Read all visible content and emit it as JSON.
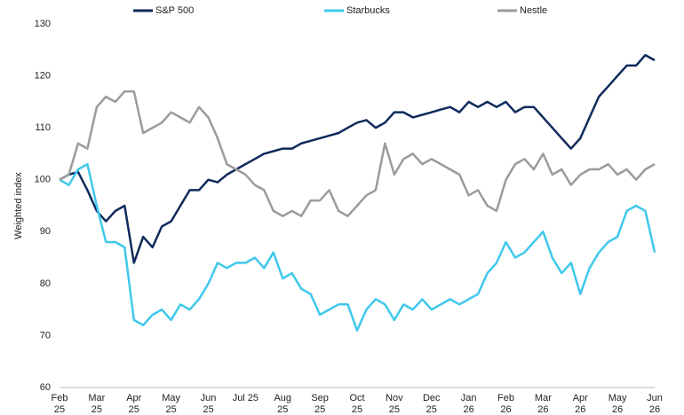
{
  "chart_data": {
    "type": "line",
    "y_label": "Weighted index",
    "categories": [
      "Feb 25",
      null,
      null,
      null,
      "Mar 25",
      null,
      null,
      null,
      "Apr 25",
      null,
      null,
      null,
      "May 25",
      null,
      null,
      null,
      "Jun 25",
      null,
      null,
      null,
      "Jul 25",
      null,
      null,
      null,
      "Aug 25",
      null,
      null,
      null,
      "Sep 25",
      null,
      null,
      null,
      "Oct 25",
      null,
      null,
      null,
      "Nov 25",
      null,
      null,
      null,
      "Dec 25",
      null,
      null,
      null,
      "Jan 26",
      null,
      null,
      null,
      "Feb 26",
      null,
      null,
      null,
      "Mar 26",
      null,
      null,
      null,
      "Apr 26",
      null,
      null,
      null,
      "May 26",
      null,
      null,
      null,
      "Jun 26"
    ],
    "series": [
      {
        "name": "S&P 500",
        "color": "#0f2a5c",
        "values": [
          100,
          101,
          101.5,
          98,
          94,
          92,
          94,
          95,
          84,
          89,
          87,
          91,
          92,
          95,
          98,
          98,
          100,
          99.5,
          101,
          102,
          103,
          104,
          105,
          105.5,
          106,
          106,
          107,
          107.5,
          108,
          108.5,
          109,
          110,
          111,
          111.5,
          110,
          111,
          113,
          113,
          112,
          112.5,
          113,
          113.5,
          114,
          113,
          115,
          114,
          115,
          114,
          115,
          113,
          114,
          114,
          112,
          110,
          108,
          106,
          108,
          112,
          116,
          118,
          120,
          122,
          122,
          124,
          123
        ]
      },
      {
        "name": "Starbucks",
        "color": "#3fc8ec",
        "values": [
          100,
          99,
          102,
          103,
          95,
          88,
          88,
          87,
          73,
          72,
          74,
          75,
          73,
          76,
          75,
          77,
          80,
          84,
          83,
          84,
          84,
          85,
          83,
          86,
          81,
          82,
          79,
          78,
          74,
          75,
          76,
          76,
          71,
          75,
          77,
          76,
          73,
          76,
          75,
          77,
          75,
          76,
          77,
          76,
          77,
          78,
          82,
          84,
          88,
          85,
          86,
          88,
          90,
          85,
          82,
          84,
          78,
          83,
          86,
          88,
          89,
          94,
          95,
          94,
          86
        ]
      },
      {
        "name": "Nestle",
        "color": "#9b9b9b",
        "values": [
          100,
          101,
          107,
          106,
          114,
          116,
          115,
          117,
          117,
          109,
          110,
          111,
          113,
          112,
          111,
          114,
          112,
          108,
          103,
          102,
          101,
          99,
          98,
          94,
          93,
          94,
          93,
          96,
          96,
          98,
          94,
          93,
          95,
          97,
          98,
          107,
          101,
          104,
          105,
          103,
          104,
          103,
          102,
          101,
          97,
          98,
          95,
          94,
          100,
          103,
          104,
          102,
          105,
          101,
          102,
          99,
          101,
          102,
          102,
          103,
          101,
          102,
          100,
          102,
          103
        ]
      }
    ],
    "ylim": [
      60,
      130
    ],
    "yticks": [
      60,
      70,
      80,
      90,
      100,
      110,
      120,
      130
    ],
    "grid": false
  }
}
